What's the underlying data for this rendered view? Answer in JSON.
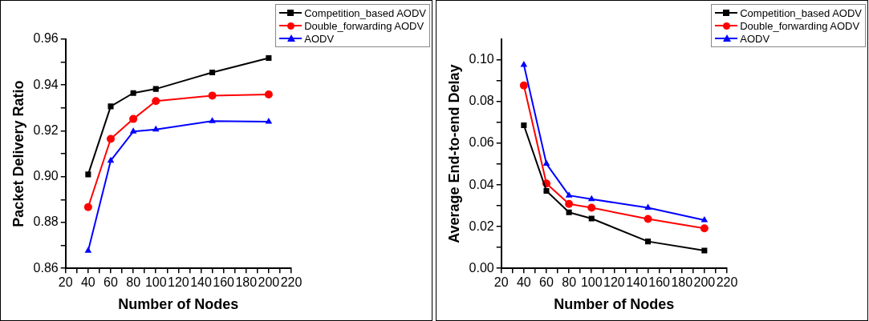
{
  "chart_data": [
    {
      "type": "line",
      "xlabel": "Number of Nodes",
      "ylabel": "Packet Delivery Ratio",
      "x": [
        40,
        60,
        80,
        100,
        150,
        200
      ],
      "series": [
        {
          "name": "Competition_based AODV",
          "color": "#000000",
          "marker": "square",
          "values": [
            0.901,
            0.9307,
            0.9365,
            0.9383,
            0.9455,
            0.9518
          ]
        },
        {
          "name": "Double_forwarding AODV",
          "color": "#ff0000",
          "marker": "circle",
          "values": [
            0.8867,
            0.9165,
            0.9252,
            0.933,
            0.9354,
            0.9359
          ]
        },
        {
          "name": "AODV",
          "color": "#0000ff",
          "marker": "triangle",
          "values": [
            0.8677,
            0.907,
            0.9197,
            0.9206,
            0.9243,
            0.924
          ]
        }
      ],
      "xlim": [
        20,
        220
      ],
      "xticks": [
        20,
        {
          "value": 30,
          "label": null
        },
        40,
        {
          "value": 50,
          "label": null
        },
        60,
        {
          "value": 70,
          "label": null
        },
        80,
        {
          "value": 90,
          "label": null
        },
        100,
        {
          "value": 110,
          "label": null
        },
        120,
        {
          "value": 130,
          "label": null
        },
        140,
        {
          "value": 150,
          "label": null
        },
        160,
        {
          "value": 170,
          "label": null
        },
        180,
        {
          "value": 190,
          "label": null
        },
        200,
        {
          "value": 210,
          "label": null
        },
        220
      ],
      "ylim": [
        0.86,
        0.96
      ],
      "yticks": [
        {
          "value": 0.86,
          "label": "0.86"
        },
        {
          "value": 0.87,
          "label": null
        },
        {
          "value": 0.88,
          "label": "0.88"
        },
        {
          "value": 0.89,
          "label": null
        },
        {
          "value": 0.9,
          "label": "0.90"
        },
        {
          "value": 0.91,
          "label": null
        },
        {
          "value": 0.92,
          "label": "0.92"
        },
        {
          "value": 0.93,
          "label": null
        },
        {
          "value": 0.94,
          "label": "0.94"
        },
        {
          "value": 0.95,
          "label": null
        },
        {
          "value": 0.96,
          "label": "0.96"
        }
      ],
      "grid": false,
      "legend": "top right",
      "line_style": "solid"
    },
    {
      "type": "line",
      "xlabel": "Number of Nodes",
      "ylabel": "Average End-to-end Delay",
      "x": [
        40,
        60,
        80,
        100,
        150,
        200
      ],
      "series": [
        {
          "name": "Competition_based AODV",
          "color": "#000000",
          "marker": "square",
          "values": [
            0.0687,
            0.0372,
            0.0269,
            0.0239,
            0.0129,
            0.0085
          ]
        },
        {
          "name": "Double_forwarding AODV",
          "color": "#ff0000",
          "marker": "circle",
          "values": [
            0.0878,
            0.0407,
            0.0309,
            0.0291,
            0.0237,
            0.0192
          ]
        },
        {
          "name": "AODV",
          "color": "#0000ff",
          "marker": "triangle",
          "values": [
            0.0977,
            0.0502,
            0.035,
            0.0332,
            0.0291,
            0.0231
          ]
        }
      ],
      "xlim": [
        20,
        220
      ],
      "xticks": [
        20,
        {
          "value": 30,
          "label": null
        },
        40,
        {
          "value": 50,
          "label": null
        },
        60,
        {
          "value": 70,
          "label": null
        },
        80,
        {
          "value": 90,
          "label": null
        },
        100,
        {
          "value": 110,
          "label": null
        },
        120,
        {
          "value": 130,
          "label": null
        },
        140,
        {
          "value": 150,
          "label": null
        },
        160,
        {
          "value": 170,
          "label": null
        },
        180,
        {
          "value": 190,
          "label": null
        },
        200,
        {
          "value": 210,
          "label": null
        },
        220
      ],
      "ylim": [
        0,
        0.11
      ],
      "yticks": [
        {
          "value": 0,
          "label": "0.00"
        },
        {
          "value": 0.01,
          "label": null
        },
        {
          "value": 0.02,
          "label": "0.02"
        },
        {
          "value": 0.03,
          "label": null
        },
        {
          "value": 0.04,
          "label": "0.04"
        },
        {
          "value": 0.05,
          "label": null
        },
        {
          "value": 0.06,
          "label": "0.06"
        },
        {
          "value": 0.07,
          "label": null
        },
        {
          "value": 0.08,
          "label": "0.08"
        },
        {
          "value": 0.09,
          "label": null
        },
        {
          "value": 0.1,
          "label": "0.10"
        }
      ],
      "grid": false,
      "legend": "top right",
      "line_style": "solid"
    }
  ]
}
